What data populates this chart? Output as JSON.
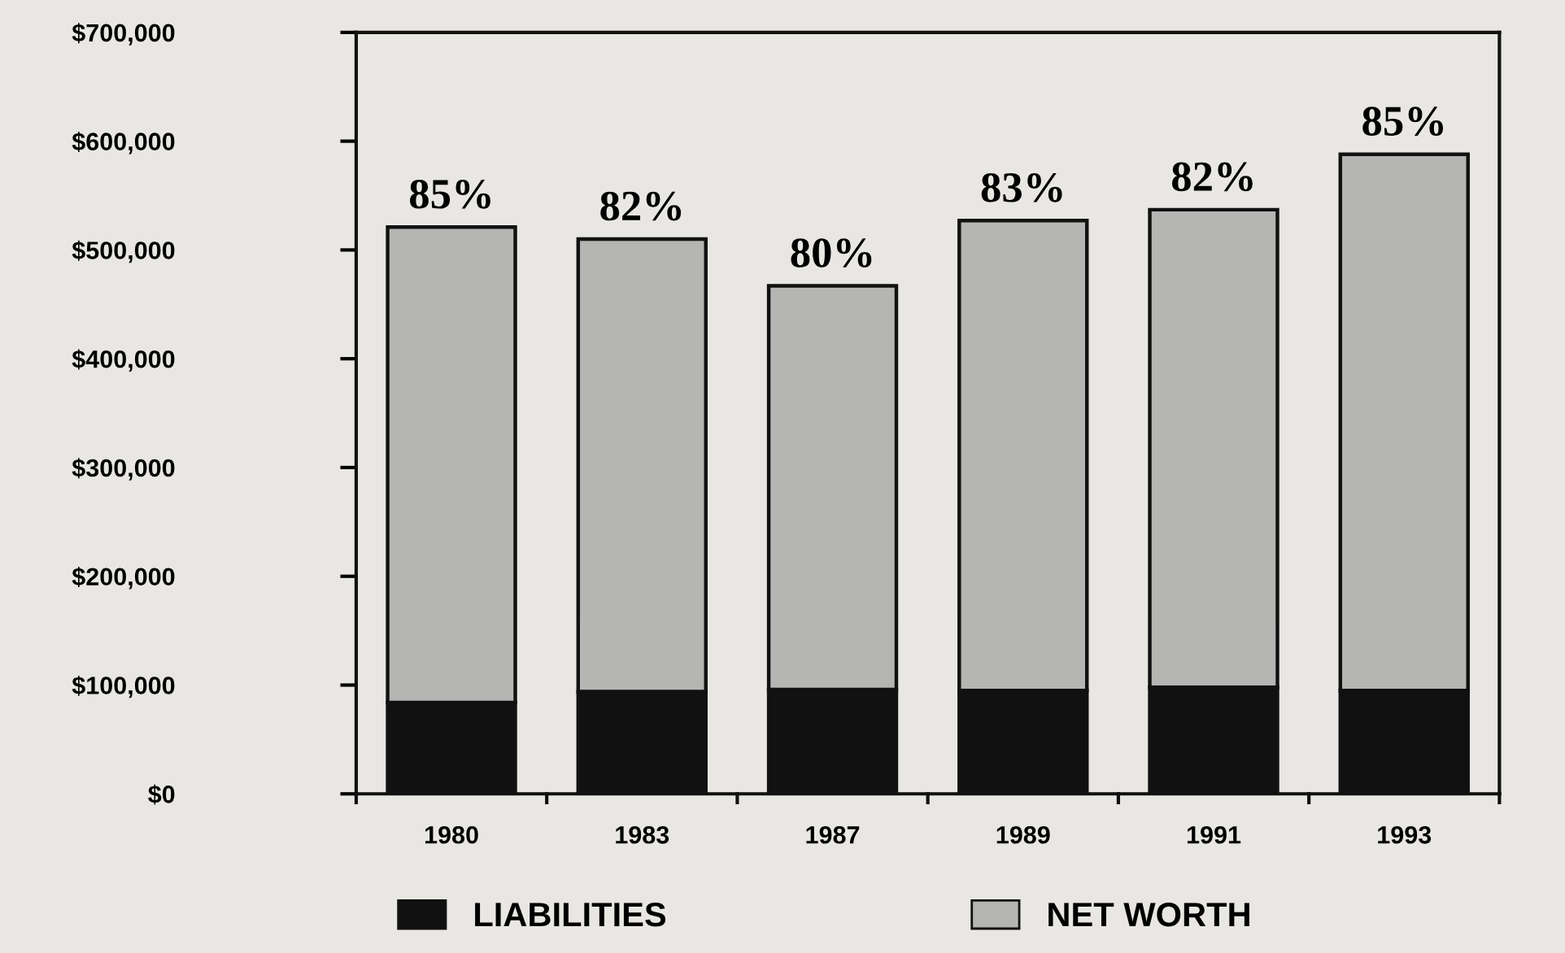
{
  "chart_data": {
    "type": "bar",
    "stacked": true,
    "categories": [
      "1980",
      "1983",
      "1987",
      "1989",
      "1991",
      "1993"
    ],
    "series": [
      {
        "name": "LIABILITIES",
        "color": "#111111",
        "values": [
          84000,
          94000,
          96000,
          95000,
          98000,
          95000
        ]
      },
      {
        "name": "NET WORTH",
        "color": "#b5b5b3",
        "values": [
          437000,
          416000,
          371000,
          432000,
          439000,
          493000
        ]
      }
    ],
    "annotations": [
      {
        "text": "85%",
        "x": "1980",
        "y": 521000
      },
      {
        "text": "82%",
        "x": "1983",
        "y": 510000
      },
      {
        "text": "80%",
        "x": "1987",
        "y": 467000
      },
      {
        "text": "83%",
        "x": "1989",
        "y": 527000
      },
      {
        "text": "82%",
        "x": "1991",
        "y": 537000
      },
      {
        "text": "85%",
        "x": "1993",
        "y": 588000
      }
    ],
    "ylim": [
      0,
      700000
    ],
    "yticks": [
      {
        "value": 0,
        "label": "$0"
      },
      {
        "value": 100000,
        "label": "$100,000"
      },
      {
        "value": 200000,
        "label": "$200,000"
      },
      {
        "value": 300000,
        "label": "$300,000"
      },
      {
        "value": 400000,
        "label": "$400,000"
      },
      {
        "value": 500000,
        "label": "$500,000"
      },
      {
        "value": 600000,
        "label": "$600,000"
      },
      {
        "value": 700000,
        "label": "$700,000"
      }
    ],
    "grid": false,
    "legend": "bottom"
  }
}
